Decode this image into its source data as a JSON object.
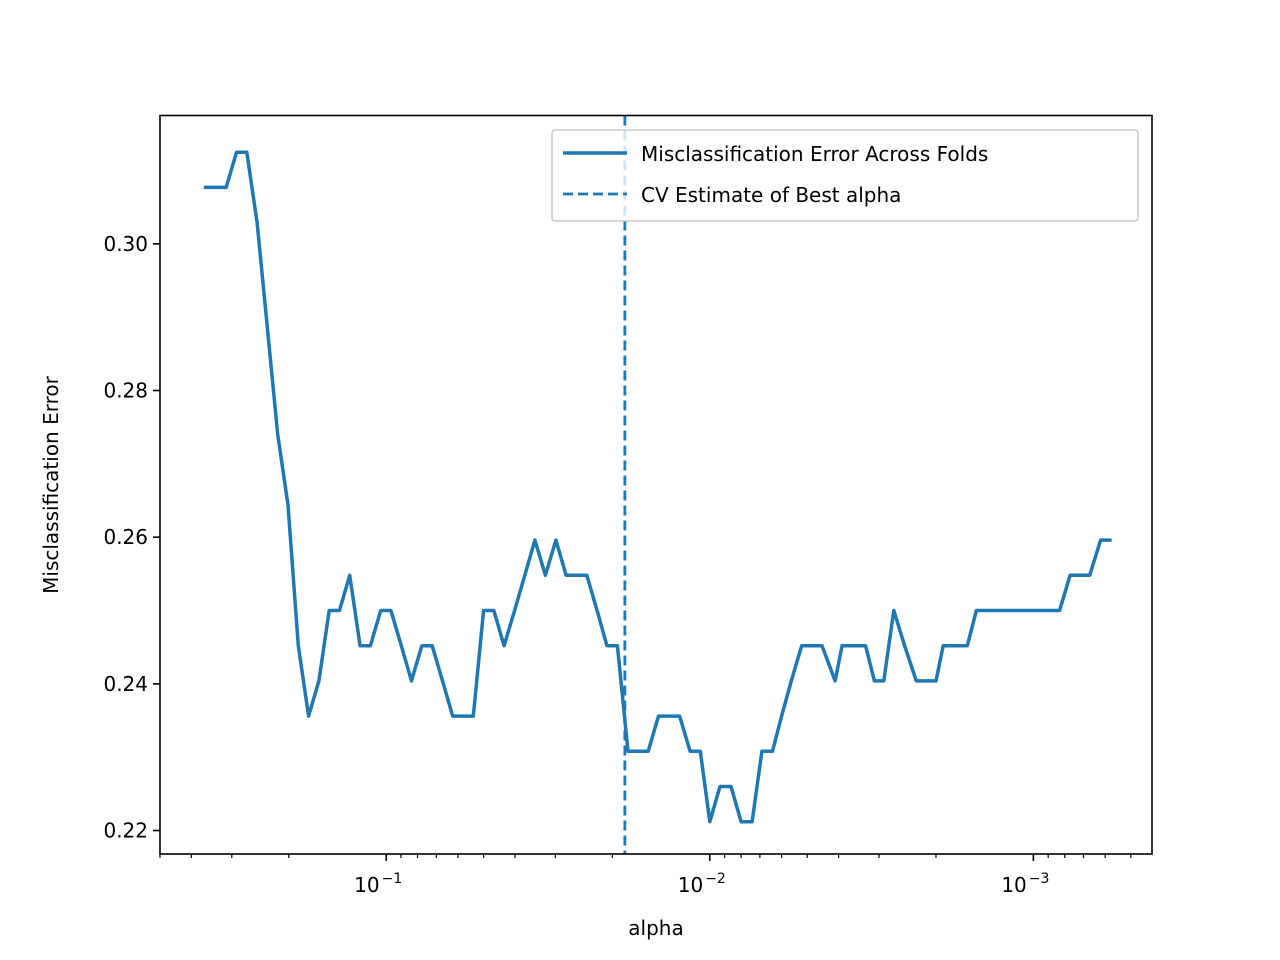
{
  "chart_data": {
    "type": "line",
    "xlabel": "alpha",
    "ylabel": "Misclassification Error",
    "x_scale": "log",
    "x_inverted": true,
    "xlim": [
      0.5,
      0.00043
    ],
    "ylim": [
      0.2168,
      0.3175
    ],
    "yticks": [
      {
        "value": 0.22,
        "label": "0.22"
      },
      {
        "value": 0.24,
        "label": "0.24"
      },
      {
        "value": 0.26,
        "label": "0.26"
      },
      {
        "value": 0.28,
        "label": "0.28"
      },
      {
        "value": 0.3,
        "label": "0.30"
      }
    ],
    "xticks": [
      {
        "value": 0.1,
        "base": "10",
        "exp": "−1"
      },
      {
        "value": 0.01,
        "base": "10",
        "exp": "−2"
      },
      {
        "value": 0.001,
        "base": "10",
        "exp": "−3"
      }
    ],
    "legend_position": "upper right",
    "grid": false,
    "color": "#1f77b4",
    "series": [
      {
        "name": "Misclassification Error Across Folds",
        "style": "solid",
        "x": [
          0.3614,
          0.3358,
          0.3121,
          0.2901,
          0.2696,
          0.2505,
          0.2328,
          0.2164,
          0.2011,
          0.1869,
          0.1737,
          0.1614,
          0.15,
          0.1394,
          0.1296,
          0.1204,
          0.1119,
          0.104,
          0.0967,
          0.0898,
          0.0835,
          0.0776,
          0.0721,
          0.067,
          0.0623,
          0.0579,
          0.0538,
          0.05,
          0.0465,
          0.0432,
          0.0401,
          0.0373,
          0.0347,
          0.0322,
          0.0299,
          0.0278,
          0.0259,
          0.024,
          0.0223,
          0.0208,
          0.0193,
          0.0179,
          0.0167,
          0.0155,
          0.0144,
          0.0134,
          0.0124,
          0.0115,
          0.0107,
          0.01,
          0.0093,
          0.0086,
          0.008,
          0.0074,
          0.0069,
          0.0064,
          0.006,
          0.0056,
          0.0052,
          0.0048,
          0.0045,
          0.0041,
          0.0039,
          0.0036,
          0.0033,
          0.0031,
          0.0029,
          0.0027,
          0.0025,
          0.0023,
          0.0021,
          0.002,
          0.0019,
          0.0017,
          0.0016,
          0.0015,
          0.0014,
          0.0013,
          0.0012,
          0.0011,
          0.001,
          0.00096,
          0.00089,
          0.00083,
          0.00077,
          0.00072,
          0.00067,
          0.00062,
          0.00058
        ],
        "y": [
          0.3077,
          0.3077,
          0.3077,
          0.3125,
          0.3125,
          0.3029,
          0.2885,
          0.274,
          0.2644,
          0.2452,
          0.2356,
          0.2404,
          0.25,
          0.25,
          0.2548,
          0.2452,
          0.2452,
          0.25,
          0.25,
          0.2452,
          0.2404,
          0.2452,
          0.2452,
          0.2404,
          0.2356,
          0.2356,
          0.2356,
          0.25,
          0.25,
          0.2452,
          0.25,
          0.2548,
          0.2596,
          0.2548,
          0.2596,
          0.2548,
          0.2548,
          0.2548,
          0.25,
          0.2452,
          0.2452,
          0.2308,
          0.2308,
          0.2308,
          0.2356,
          0.2356,
          0.2356,
          0.2308,
          0.2308,
          0.2212,
          0.226,
          0.226,
          0.2212,
          0.2212,
          0.2308,
          0.2308,
          0.2356,
          0.2404,
          0.2452,
          0.2452,
          0.2452,
          0.2404,
          0.2452,
          0.2452,
          0.2452,
          0.2404,
          0.2404,
          0.25,
          0.2452,
          0.2404,
          0.2404,
          0.2404,
          0.2452,
          0.2452,
          0.2452,
          0.25,
          0.25,
          0.25,
          0.25,
          0.25,
          0.25,
          0.25,
          0.25,
          0.25,
          0.2548,
          0.2548,
          0.2548,
          0.2596,
          0.2596
        ]
      },
      {
        "name": "CV Estimate of Best alpha",
        "style": "dashed",
        "vline_x": 0.0183
      }
    ]
  }
}
